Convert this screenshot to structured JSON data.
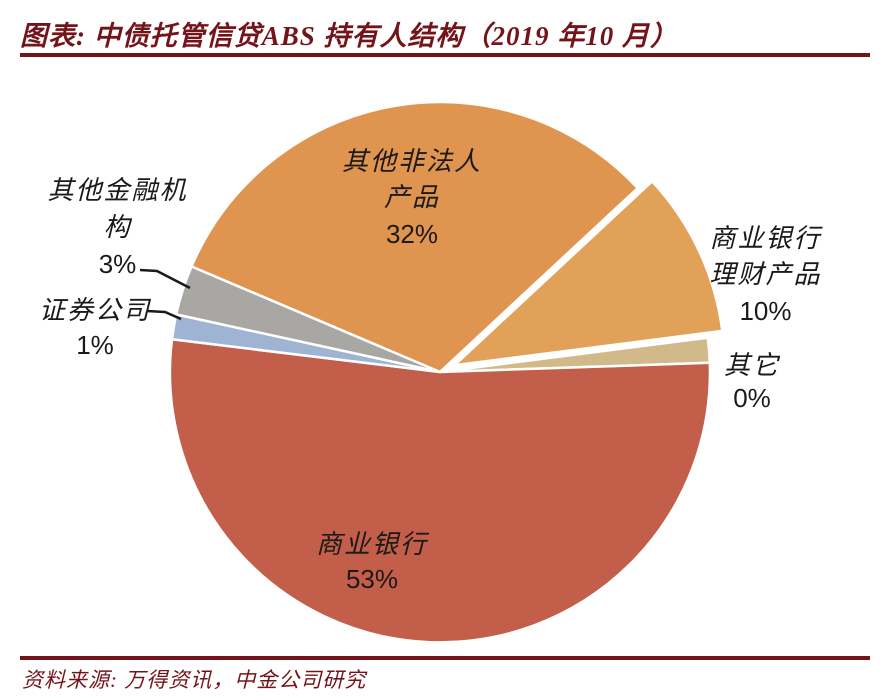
{
  "title": {
    "text": "图表:  中债托管信贷ABS 持有人结构（2019 年10 月）"
  },
  "source": {
    "text": "资料来源: 万得资讯，中金公司研究"
  },
  "colors": {
    "accent_maroon": "#74141A",
    "label_ink": "#1C1A18",
    "background": "#FFFFFF",
    "slice_border": "#FFFFFF"
  },
  "chart_data": {
    "type": "pie",
    "title": "中债托管信贷ABS 持有人结构（2019 年10 月）",
    "unit": "%",
    "start_angle_deg": 293,
    "legend_position": "none",
    "slices": [
      {
        "name": "other-non-corporate-products",
        "label": "其他非法人产品",
        "value": 32,
        "color": "#DF944F",
        "exploded": false,
        "label_lines": [
          "其他非法人",
          "产品",
          "32%"
        ]
      },
      {
        "name": "bank-wealth-mgmt-products",
        "label": "商业银行理财产品",
        "value": 10,
        "color": "#E2A159",
        "exploded": true,
        "label_lines": [
          "商业银行",
          "理财产品",
          "10%"
        ]
      },
      {
        "name": "others",
        "label": "其它",
        "value": 0,
        "color": "#D2B98A",
        "exploded": false,
        "label_lines": [
          "其它",
          "0%"
        ]
      },
      {
        "name": "commercial-banks",
        "label": "商业银行",
        "value": 53,
        "color": "#C25E49",
        "exploded": false,
        "label_lines": [
          "商业银行",
          "53%"
        ]
      },
      {
        "name": "securities-companies",
        "label": "证券公司",
        "value": 1,
        "color": "#9FB4D2",
        "exploded": false,
        "label_lines": [
          "证券公司",
          "1%"
        ]
      },
      {
        "name": "other-financial-institutions",
        "label": "其他金融机构",
        "value": 3,
        "color": "#A9A7A4",
        "exploded": false,
        "label_lines": [
          "其他金融机",
          "构",
          "3%"
        ]
      }
    ]
  }
}
